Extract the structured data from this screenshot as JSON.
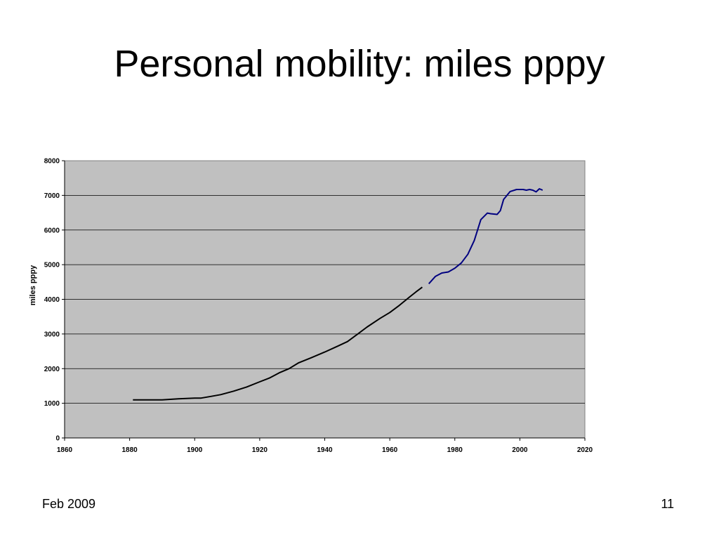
{
  "slide": {
    "title": "Personal mobility: miles pppy",
    "footer_left": "Feb 2009",
    "page_number": "11"
  },
  "chart_data": {
    "type": "line",
    "title": "",
    "xlabel": "",
    "ylabel": "miles pppy",
    "xlim": [
      1860,
      2020
    ],
    "ylim": [
      0,
      8000
    ],
    "x_ticks": [
      1860,
      1880,
      1900,
      1920,
      1940,
      1960,
      1980,
      2000,
      2020
    ],
    "y_ticks": [
      0,
      1000,
      2000,
      3000,
      4000,
      5000,
      6000,
      7000,
      8000
    ],
    "grid": "horizontal",
    "plot_background": "#c0c0c0",
    "series": [
      {
        "color": "#000000",
        "x": [
          1881,
          1885,
          1890,
          1895,
          1900,
          1902,
          1905,
          1908,
          1912,
          1916,
          1920,
          1923,
          1926,
          1929,
          1932,
          1936,
          1940,
          1944,
          1947,
          1950,
          1953,
          1957,
          1960,
          1963,
          1966,
          1968,
          1970
        ],
        "y": [
          1100,
          1100,
          1100,
          1130,
          1150,
          1150,
          1200,
          1250,
          1350,
          1470,
          1620,
          1730,
          1880,
          2000,
          2170,
          2320,
          2480,
          2650,
          2780,
          2990,
          3200,
          3450,
          3620,
          3830,
          4060,
          4210,
          4350
        ]
      },
      {
        "color": "#000080",
        "x": [
          1972,
          1974,
          1976,
          1978,
          1980,
          1982,
          1984,
          1986,
          1988,
          1990,
          1991,
          1993,
          1994,
          1995,
          1997,
          1999,
          2001,
          2002,
          2003,
          2004,
          2005,
          2006,
          2007
        ],
        "y": [
          4450,
          4660,
          4760,
          4790,
          4900,
          5050,
          5300,
          5700,
          6300,
          6490,
          6470,
          6450,
          6560,
          6880,
          7110,
          7170,
          7170,
          7150,
          7170,
          7150,
          7100,
          7190,
          7150
        ]
      }
    ]
  }
}
